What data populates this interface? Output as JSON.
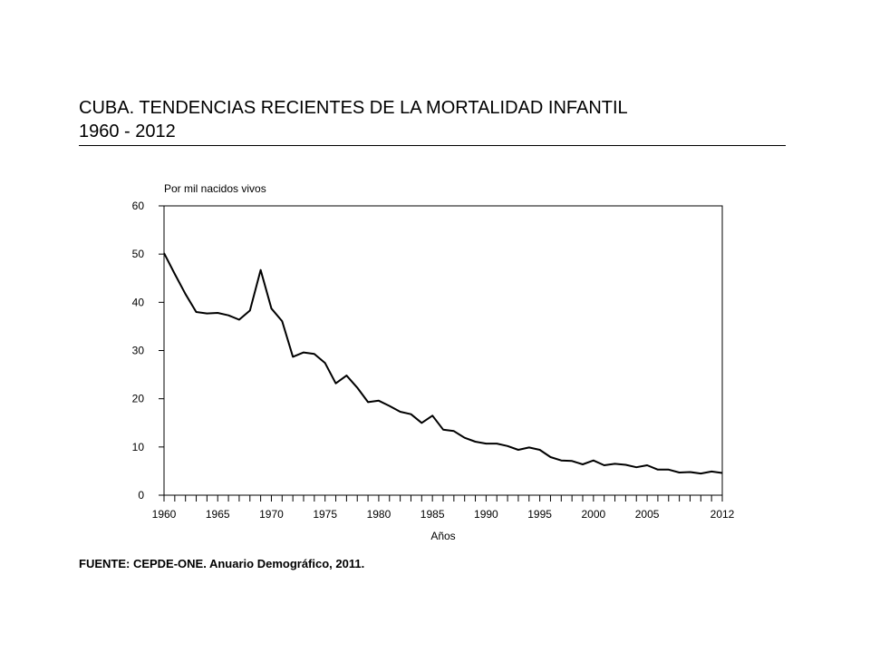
{
  "header": {
    "title_line1": "CUBA. TENDENCIAS RECIENTES DE LA MORTALIDAD INFANTIL",
    "title_line2": "1960 - 2012"
  },
  "footer": {
    "source": "FUENTE: CEPDE-ONE. Anuario Demográfico, 2011."
  },
  "chart_data": {
    "type": "line",
    "title": "CUBA. TENDENCIAS RECIENTES DE LA MORTALIDAD INFANTIL 1960 - 2012",
    "xlabel": "Años",
    "ylabel": "Por mil nacidos vivos",
    "xlim": [
      1960,
      2012
    ],
    "ylim": [
      0,
      60
    ],
    "x_ticks": [
      1960,
      1965,
      1970,
      1975,
      1980,
      1985,
      1990,
      1995,
      2000,
      2005,
      2012
    ],
    "y_ticks": [
      0,
      10,
      20,
      30,
      40,
      50,
      60
    ],
    "grid": false,
    "line_color": "#000000",
    "series": [
      {
        "x": [
          1960,
          1961,
          1962,
          1963,
          1964,
          1965,
          1966,
          1967,
          1968,
          1969,
          1970,
          1971,
          1972,
          1973,
          1974,
          1975,
          1976,
          1977,
          1978,
          1979,
          1980,
          1981,
          1982,
          1983,
          1984,
          1985,
          1986,
          1987,
          1988,
          1989,
          1990,
          1991,
          1992,
          1993,
          1994,
          1995,
          1996,
          1997,
          1998,
          1999,
          2000,
          2001,
          2002,
          2003,
          2004,
          2005,
          2006,
          2007,
          2008,
          2009,
          2010,
          2011,
          2012
        ],
        "values": [
          50.2,
          45.9,
          41.7,
          38.0,
          37.7,
          37.8,
          37.3,
          36.4,
          38.3,
          46.7,
          38.7,
          36.1,
          28.7,
          29.6,
          29.3,
          27.4,
          23.2,
          24.8,
          22.3,
          19.3,
          19.6,
          18.5,
          17.3,
          16.8,
          15.0,
          16.5,
          13.6,
          13.3,
          11.9,
          11.1,
          10.7,
          10.7,
          10.2,
          9.4,
          9.9,
          9.4,
          7.9,
          7.2,
          7.1,
          6.4,
          7.2,
          6.2,
          6.5,
          6.3,
          5.8,
          6.2,
          5.3,
          5.3,
          4.7,
          4.8,
          4.5,
          4.9,
          4.6
        ]
      }
    ]
  }
}
